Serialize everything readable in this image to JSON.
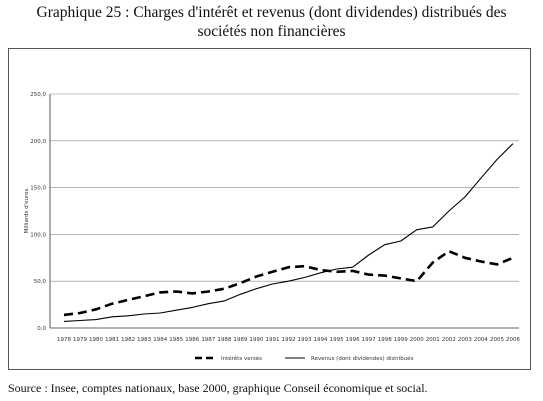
{
  "title_line1": "Graphique 25 : Charges d'intérêt et revenus (dont dividendes) distribués des",
  "title_line2": "sociétés non financières",
  "source": "Source : Insee, comptes nationaux, base 2000, graphique Conseil économique et social.",
  "chart_data": {
    "type": "line",
    "ylabel": "Milliards d'euros",
    "ylim": [
      0,
      250
    ],
    "yticks": [
      "0,0",
      "50,0",
      "100,0",
      "150,0",
      "200,0",
      "250,0"
    ],
    "grid": "horizontal",
    "legend_position": "bottom",
    "x": [
      "1978",
      "1979",
      "1980",
      "1981",
      "1982",
      "1983",
      "1984",
      "1985",
      "1986",
      "1987",
      "1988",
      "1989",
      "1990",
      "1991",
      "1992",
      "1993",
      "1994",
      "1995",
      "1996",
      "1997",
      "1998",
      "1999",
      "2000",
      "2001",
      "2002",
      "2003",
      "2004",
      "2005",
      "2006"
    ],
    "series": [
      {
        "name": "Intérêts versés",
        "style": "dashed",
        "color": "#000000",
        "values": [
          14,
          16,
          20,
          26,
          30,
          34,
          38,
          39,
          37,
          39,
          42,
          48,
          55,
          60,
          65,
          66,
          62,
          60,
          61,
          57,
          56,
          53,
          50,
          70,
          82,
          75,
          71,
          68,
          75
        ]
      },
      {
        "name": "Revenus (dont dividendes) distribués",
        "style": "solid",
        "color": "#000000",
        "values": [
          7,
          8,
          9,
          12,
          13,
          15,
          16,
          19,
          22,
          26,
          29,
          36,
          42,
          47,
          50,
          54,
          59,
          63,
          65,
          78,
          89,
          93,
          105,
          108,
          125,
          140,
          160,
          180,
          197
        ]
      }
    ]
  }
}
